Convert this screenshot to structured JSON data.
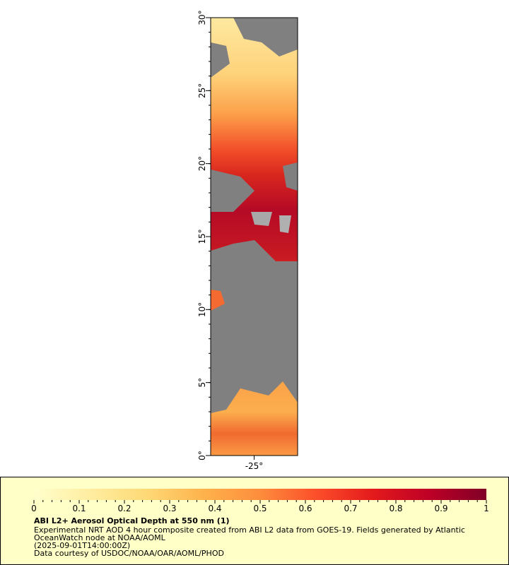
{
  "map": {
    "xlim": [
      -28,
      -22
    ],
    "xticks": [
      {
        "value": -25,
        "label": "-25°"
      }
    ],
    "ylim": [
      0,
      30
    ],
    "yticks": [
      {
        "value": 0,
        "label": "0°"
      },
      {
        "value": 5,
        "label": "5°"
      },
      {
        "value": 10,
        "label": "10°"
      },
      {
        "value": 15,
        "label": "15°"
      },
      {
        "value": 20,
        "label": "20°"
      },
      {
        "value": 25,
        "label": "25°"
      },
      {
        "value": 30,
        "label": "30°"
      }
    ]
  },
  "colorbar": {
    "title": "ABI L2+ Aerosol Optical Depth at 550 nm (1)",
    "range": [
      0,
      1
    ],
    "ticks": [
      0,
      0.1,
      0.2,
      0.3,
      0.4,
      0.5,
      0.6,
      0.7,
      0.8,
      0.9,
      1
    ],
    "colors": [
      "#ffffcc",
      "#ffeda0",
      "#fed976",
      "#feb24c",
      "#fd8d3c",
      "#fc4e2a",
      "#e31a1c",
      "#bd0026",
      "#800026"
    ]
  },
  "notes": [
    "Experimental NRT AOD 4 hour composite created from ABI L2 data from GOES-19. Fields generated by Atlantic",
    "OceanWatch node at NOAA/AOML",
    "(2025-09-01T14:00:00Z)",
    "Data courtesy of USDOC/NOAA/OAR/AOML/PHOD"
  ]
}
